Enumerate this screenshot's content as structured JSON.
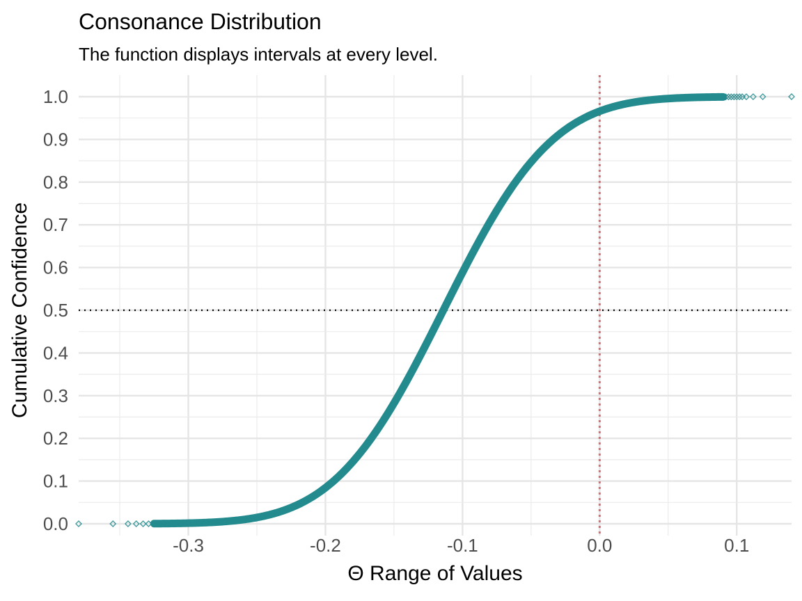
{
  "chart_data": {
    "type": "scatter",
    "title": "Consonance Distribution",
    "subtitle": "The function displays intervals at every level.",
    "xlabel": "Θ Range of Values",
    "ylabel": "Cumulative Confidence",
    "xlim": [
      -0.38,
      0.14
    ],
    "ylim": [
      0.0,
      1.0
    ],
    "x_ticks": [
      -0.3,
      -0.2,
      -0.1,
      0.0,
      0.1
    ],
    "x_tick_labels": [
      "-0.3",
      "-0.2",
      "-0.1",
      "0.0",
      "0.1"
    ],
    "y_ticks": [
      0.0,
      0.1,
      0.2,
      0.3,
      0.4,
      0.5,
      0.6,
      0.7,
      0.8,
      0.9,
      1.0
    ],
    "y_tick_labels": [
      "0.0",
      "0.1",
      "0.2",
      "0.3",
      "0.4",
      "0.5",
      "0.6",
      "0.7",
      "0.8",
      "0.9",
      "1.0"
    ],
    "grid": true,
    "marker": "diamond",
    "series_color": "#238b8e",
    "curve_center": -0.114,
    "curve_sd": 0.0625,
    "points": [
      [
        -0.38,
        0.0
      ],
      [
        -0.355,
        0.0
      ],
      [
        -0.344,
        0.0
      ],
      [
        -0.338,
        0.0
      ],
      [
        -0.333,
        0.0
      ],
      [
        -0.329,
        0.0
      ],
      [
        -0.325,
        0.0
      ],
      [
        -0.3,
        0.001
      ],
      [
        -0.28,
        0.004
      ],
      [
        -0.26,
        0.01
      ],
      [
        -0.24,
        0.022
      ],
      [
        -0.22,
        0.045
      ],
      [
        -0.2,
        0.085
      ],
      [
        -0.18,
        0.146
      ],
      [
        -0.16,
        0.231
      ],
      [
        -0.14,
        0.339
      ],
      [
        -0.12,
        0.462
      ],
      [
        -0.114,
        0.5
      ],
      [
        -0.1,
        0.587
      ],
      [
        -0.08,
        0.705
      ],
      [
        -0.06,
        0.805
      ],
      [
        -0.04,
        0.881
      ],
      [
        -0.02,
        0.933
      ],
      [
        0.0,
        0.966
      ],
      [
        0.02,
        0.984
      ],
      [
        0.04,
        0.993
      ],
      [
        0.06,
        0.997
      ],
      [
        0.08,
        0.999
      ],
      [
        0.092,
        0.9995
      ],
      [
        0.1,
        0.9997
      ],
      [
        0.107,
        0.9998
      ],
      [
        0.112,
        0.9999
      ],
      [
        0.119,
        0.9999
      ],
      [
        0.14,
        1.0
      ]
    ],
    "reference_lines": {
      "horizontal_y": 0.5,
      "horizontal_color": "#000000",
      "vertical_x": 0.0,
      "vertical_color": "#c0777b"
    }
  }
}
